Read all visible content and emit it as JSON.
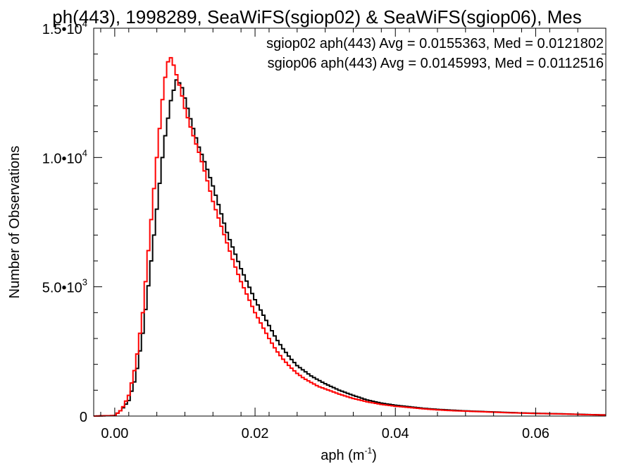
{
  "chart_data": {
    "type": "line",
    "title": "ph(443), 1998289, SeaWiFS(sgiop02) & SeaWiFS(sgiop06), Mes",
    "xlabel": "aph (m",
    "xlabel_sup": "-1",
    "xlabel_suffix": ")",
    "ylabel": "Number of Observations",
    "xlim": [
      -0.003,
      0.07
    ],
    "ylim": [
      0,
      15000
    ],
    "x_ticks": [
      0.0,
      0.02,
      0.04,
      0.06
    ],
    "x_tick_labels": [
      "0.00",
      "0.02",
      "0.04",
      "0.06"
    ],
    "y_ticks": [
      0,
      5000,
      10000,
      15000
    ],
    "y_tick_labels": [
      {
        "mantissa": "0",
        "exponent": ""
      },
      {
        "mantissa": "5.0•10",
        "exponent": "3"
      },
      {
        "mantissa": "1.0•10",
        "exponent": "4"
      },
      {
        "mantissa": "1.5•10",
        "exponent": "4"
      }
    ],
    "grid": false,
    "legend_position": "top-right",
    "step": 0.0004,
    "series": [
      {
        "name": "sgiop02 aph(443) Avg = 0.0155363, Med = 0.0121802",
        "color": "#000000",
        "points": [
          [
            -0.003,
            0
          ],
          [
            0.0,
            20
          ],
          [
            0.001,
            250
          ],
          [
            0.002,
            600
          ],
          [
            0.003,
            1500
          ],
          [
            0.004,
            3200
          ],
          [
            0.005,
            5500
          ],
          [
            0.006,
            8000
          ],
          [
            0.007,
            10500
          ],
          [
            0.008,
            12200
          ],
          [
            0.0088,
            13000
          ],
          [
            0.0095,
            12800
          ],
          [
            0.01,
            12300
          ],
          [
            0.011,
            11300
          ],
          [
            0.012,
            10400
          ],
          [
            0.013,
            9700
          ],
          [
            0.014,
            8900
          ],
          [
            0.015,
            8000
          ],
          [
            0.016,
            7100
          ],
          [
            0.017,
            6400
          ],
          [
            0.018,
            5700
          ],
          [
            0.019,
            5100
          ],
          [
            0.02,
            4500
          ],
          [
            0.021,
            4000
          ],
          [
            0.022,
            3500
          ],
          [
            0.023,
            3000
          ],
          [
            0.024,
            2600
          ],
          [
            0.025,
            2250
          ],
          [
            0.026,
            1950
          ],
          [
            0.027,
            1750
          ],
          [
            0.028,
            1550
          ],
          [
            0.029,
            1400
          ],
          [
            0.03,
            1250
          ],
          [
            0.032,
            1000
          ],
          [
            0.034,
            800
          ],
          [
            0.036,
            620
          ],
          [
            0.038,
            500
          ],
          [
            0.04,
            420
          ],
          [
            0.042,
            360
          ],
          [
            0.044,
            300
          ],
          [
            0.046,
            260
          ],
          [
            0.048,
            230
          ],
          [
            0.05,
            200
          ],
          [
            0.052,
            180
          ],
          [
            0.054,
            160
          ],
          [
            0.056,
            140
          ],
          [
            0.058,
            120
          ],
          [
            0.06,
            110
          ],
          [
            0.062,
            95
          ],
          [
            0.064,
            85
          ],
          [
            0.066,
            70
          ],
          [
            0.068,
            55
          ],
          [
            0.07,
            45
          ]
        ]
      },
      {
        "name": "sgiop06 aph(443) Avg = 0.0145993, Med = 0.0112516",
        "color": "#ff0000",
        "points": [
          [
            -0.003,
            0
          ],
          [
            0.0,
            20
          ],
          [
            0.001,
            250
          ],
          [
            0.002,
            800
          ],
          [
            0.003,
            2000
          ],
          [
            0.004,
            4000
          ],
          [
            0.005,
            7000
          ],
          [
            0.006,
            10000
          ],
          [
            0.007,
            12800
          ],
          [
            0.0078,
            14000
          ],
          [
            0.0085,
            13500
          ],
          [
            0.009,
            13000
          ],
          [
            0.0095,
            12500
          ],
          [
            0.01,
            11900
          ],
          [
            0.011,
            11000
          ],
          [
            0.012,
            10200
          ],
          [
            0.013,
            9300
          ],
          [
            0.014,
            8300
          ],
          [
            0.015,
            7500
          ],
          [
            0.016,
            6700
          ],
          [
            0.017,
            5900
          ],
          [
            0.018,
            5200
          ],
          [
            0.019,
            4600
          ],
          [
            0.02,
            4000
          ],
          [
            0.021,
            3500
          ],
          [
            0.022,
            3000
          ],
          [
            0.023,
            2550
          ],
          [
            0.024,
            2200
          ],
          [
            0.025,
            1900
          ],
          [
            0.026,
            1650
          ],
          [
            0.027,
            1450
          ],
          [
            0.028,
            1300
          ],
          [
            0.029,
            1150
          ],
          [
            0.03,
            1050
          ],
          [
            0.032,
            850
          ],
          [
            0.034,
            680
          ],
          [
            0.036,
            550
          ],
          [
            0.038,
            450
          ],
          [
            0.04,
            380
          ],
          [
            0.042,
            330
          ],
          [
            0.044,
            280
          ],
          [
            0.046,
            240
          ],
          [
            0.048,
            210
          ],
          [
            0.05,
            190
          ],
          [
            0.052,
            170
          ],
          [
            0.054,
            150
          ],
          [
            0.056,
            130
          ],
          [
            0.058,
            115
          ],
          [
            0.06,
            100
          ],
          [
            0.062,
            90
          ],
          [
            0.064,
            80
          ],
          [
            0.066,
            65
          ],
          [
            0.068,
            50
          ],
          [
            0.07,
            40
          ]
        ]
      }
    ]
  }
}
